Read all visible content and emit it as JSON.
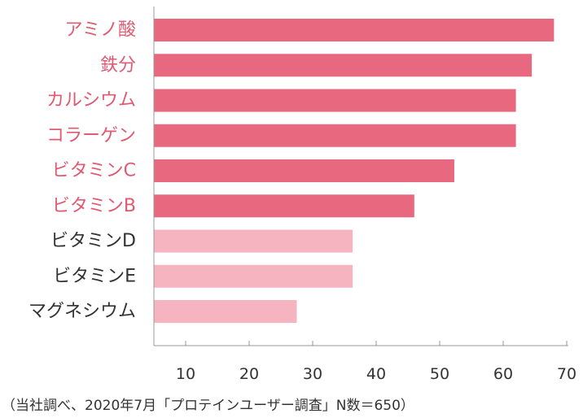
{
  "chart_data": {
    "type": "bar",
    "orientation": "horizontal",
    "categories": [
      "アミノ酸",
      "鉄分",
      "カルシウム",
      "コラーゲン",
      "ビタミンC",
      "ビタミンB",
      "ビタミンD",
      "ビタミンE",
      "マグネシウム"
    ],
    "values": [
      68,
      64.5,
      62,
      62,
      52.3,
      46,
      36.3,
      36.3,
      27.5
    ],
    "bar_colors": [
      "#e8697f",
      "#e8697f",
      "#e8697f",
      "#e8697f",
      "#e8697f",
      "#e8697f",
      "#f5b4c0",
      "#f5b4c0",
      "#f5b4c0"
    ],
    "label_colors": [
      "#e05a72",
      "#e05a72",
      "#e05a72",
      "#e05a72",
      "#e05a72",
      "#e05a72",
      "#333333",
      "#333333",
      "#333333"
    ],
    "xlim": [
      5,
      70
    ],
    "xticks": [
      10,
      20,
      30,
      40,
      50,
      60,
      70
    ],
    "title": "",
    "xlabel": "",
    "ylabel": "",
    "grid": false,
    "legend": "none",
    "axis_color": "#999999",
    "tick_label_color": "#333333"
  },
  "footnote": "（当社調べ、2020年7月「プロテインユーザー調査」N数＝650）"
}
